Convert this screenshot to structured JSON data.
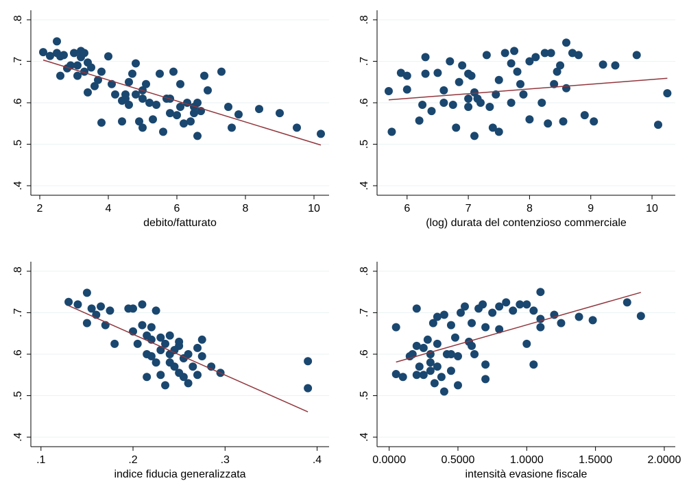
{
  "chart_data": [
    {
      "type": "scatter",
      "xlabel": "debito/fatturato",
      "color": "#1a476f",
      "fit_color": "#90353b",
      "xlim": [
        1.74,
        10.44
      ],
      "ylim": [
        0.377,
        0.823
      ],
      "xticks": [
        2,
        4,
        6,
        8,
        10
      ],
      "yticks": [
        {
          "value": 0.4,
          "label": ".4"
        },
        {
          "value": 0.5,
          "label": ".5"
        },
        {
          "value": 0.6,
          "label": ".6"
        },
        {
          "value": 0.7,
          "label": ".7"
        },
        {
          "value": 0.8,
          "label": ".8"
        }
      ],
      "x": [
        2.1,
        2.3,
        2.5,
        2.5,
        2.6,
        2.6,
        2.7,
        2.8,
        2.9,
        3.0,
        3.1,
        3.1,
        3.2,
        3.2,
        3.3,
        3.3,
        3.4,
        3.4,
        3.5,
        3.6,
        3.7,
        3.8,
        3.8,
        4.0,
        4.1,
        4.2,
        4.4,
        4.4,
        4.5,
        4.6,
        4.6,
        4.7,
        4.8,
        4.8,
        4.9,
        5.0,
        5.0,
        5.1,
        5.2,
        5.3,
        5.4,
        5.5,
        5.6,
        5.7,
        5.8,
        5.9,
        6.0,
        6.1,
        6.1,
        6.2,
        6.3,
        6.4,
        6.5,
        6.6,
        6.6,
        6.7,
        6.8,
        6.9,
        7.3,
        7.5,
        7.6,
        7.8,
        8.4,
        9.0,
        9.5,
        10.2,
        5.0,
        4.5,
        5.8,
        6.5
      ],
      "values": [
        0.722,
        0.713,
        0.748,
        0.72,
        0.665,
        0.712,
        0.715,
        0.683,
        0.69,
        0.72,
        0.69,
        0.665,
        0.725,
        0.71,
        0.675,
        0.72,
        0.697,
        0.625,
        0.685,
        0.64,
        0.655,
        0.675,
        0.552,
        0.712,
        0.645,
        0.62,
        0.605,
        0.555,
        0.61,
        0.595,
        0.65,
        0.67,
        0.695,
        0.62,
        0.555,
        0.61,
        0.54,
        0.645,
        0.6,
        0.56,
        0.595,
        0.67,
        0.53,
        0.61,
        0.575,
        0.675,
        0.57,
        0.645,
        0.59,
        0.55,
        0.6,
        0.555,
        0.575,
        0.52,
        0.6,
        0.58,
        0.665,
        0.63,
        0.675,
        0.59,
        0.54,
        0.572,
        0.585,
        0.575,
        0.54,
        0.525,
        0.63,
        0.62,
        0.61,
        0.59
      ],
      "fit_x": [
        2.1,
        10.2
      ],
      "fit_values": [
        0.703,
        0.498
      ]
    },
    {
      "type": "scatter",
      "xlabel": "(log) durata del contenzioso commerciale",
      "color": "#1a476f",
      "fit_color": "#90353b",
      "xlim": [
        5.51,
        10.38
      ],
      "ylim": [
        0.377,
        0.823
      ],
      "xticks": [
        6,
        7,
        8,
        9,
        10
      ],
      "yticks": [
        {
          "value": 0.4,
          "label": ".4"
        },
        {
          "value": 0.5,
          "label": ".5"
        },
        {
          "value": 0.6,
          "label": ".6"
        },
        {
          "value": 0.7,
          "label": ".7"
        },
        {
          "value": 0.8,
          "label": ".8"
        }
      ],
      "x": [
        5.7,
        5.75,
        5.9,
        6.0,
        6.0,
        6.2,
        6.3,
        6.3,
        6.4,
        6.5,
        6.6,
        6.6,
        6.7,
        6.75,
        6.8,
        6.85,
        6.9,
        7.0,
        7.0,
        7.05,
        7.1,
        7.1,
        7.15,
        7.2,
        7.3,
        7.35,
        7.4,
        7.45,
        7.5,
        7.5,
        7.6,
        7.7,
        7.75,
        7.8,
        7.85,
        7.9,
        8.0,
        8.0,
        8.1,
        8.2,
        8.25,
        8.3,
        8.35,
        8.4,
        8.5,
        8.55,
        8.6,
        8.6,
        8.7,
        8.8,
        8.9,
        9.05,
        9.2,
        9.4,
        9.75,
        10.1,
        10.25,
        6.25,
        7.0,
        7.7,
        8.45
      ],
      "values": [
        0.628,
        0.53,
        0.672,
        0.665,
        0.632,
        0.557,
        0.71,
        0.67,
        0.58,
        0.672,
        0.63,
        0.6,
        0.7,
        0.595,
        0.54,
        0.65,
        0.69,
        0.67,
        0.59,
        0.665,
        0.625,
        0.52,
        0.61,
        0.6,
        0.715,
        0.59,
        0.54,
        0.62,
        0.655,
        0.53,
        0.72,
        0.6,
        0.725,
        0.675,
        0.645,
        0.62,
        0.7,
        0.56,
        0.71,
        0.6,
        0.72,
        0.55,
        0.72,
        0.645,
        0.69,
        0.555,
        0.745,
        0.635,
        0.72,
        0.715,
        0.57,
        0.555,
        0.692,
        0.69,
        0.715,
        0.547,
        0.623,
        0.595,
        0.61,
        0.695,
        0.675
      ],
      "fit_x": [
        5.7,
        10.25
      ],
      "fit_values": [
        0.607,
        0.659
      ]
    },
    {
      "type": "scatter",
      "xlabel": "indice fiducia generalizzata",
      "color": "#1a476f",
      "fit_color": "#90353b",
      "xlim": [
        0.089,
        0.413
      ],
      "ylim": [
        0.377,
        0.823
      ],
      "xticks": [
        {
          "value": 0.1,
          "label": ".1"
        },
        {
          "value": 0.2,
          "label": ".2"
        },
        {
          "value": 0.3,
          "label": ".3"
        },
        {
          "value": 0.4,
          "label": ".4"
        }
      ],
      "yticks": [
        {
          "value": 0.4,
          "label": ".4"
        },
        {
          "value": 0.5,
          "label": ".5"
        },
        {
          "value": 0.6,
          "label": ".6"
        },
        {
          "value": 0.7,
          "label": ".7"
        },
        {
          "value": 0.8,
          "label": ".8"
        }
      ],
      "x": [
        0.13,
        0.14,
        0.15,
        0.15,
        0.155,
        0.16,
        0.165,
        0.17,
        0.175,
        0.18,
        0.195,
        0.2,
        0.2,
        0.205,
        0.21,
        0.21,
        0.215,
        0.215,
        0.22,
        0.22,
        0.225,
        0.225,
        0.23,
        0.23,
        0.235,
        0.235,
        0.24,
        0.24,
        0.245,
        0.245,
        0.25,
        0.25,
        0.255,
        0.255,
        0.26,
        0.26,
        0.265,
        0.27,
        0.27,
        0.275,
        0.275,
        0.285,
        0.295,
        0.39,
        0.39,
        0.215,
        0.23,
        0.22,
        0.25,
        0.24
      ],
      "values": [
        0.726,
        0.72,
        0.748,
        0.675,
        0.71,
        0.695,
        0.715,
        0.67,
        0.705,
        0.625,
        0.71,
        0.71,
        0.655,
        0.625,
        0.67,
        0.72,
        0.6,
        0.545,
        0.665,
        0.595,
        0.58,
        0.705,
        0.64,
        0.55,
        0.625,
        0.525,
        0.6,
        0.645,
        0.57,
        0.61,
        0.555,
        0.63,
        0.59,
        0.545,
        0.6,
        0.53,
        0.57,
        0.615,
        0.55,
        0.635,
        0.595,
        0.57,
        0.555,
        0.583,
        0.518,
        0.645,
        0.61,
        0.635,
        0.62,
        0.58
      ],
      "fit_x": [
        0.13,
        0.39
      ],
      "fit_values": [
        0.717,
        0.461
      ]
    },
    {
      "type": "scatter",
      "xlabel": "intensità evasione fiscale",
      "color": "#1a476f",
      "fit_color": "#90353b",
      "xlim": [
        -0.088,
        2.08
      ],
      "ylim": [
        0.377,
        0.823
      ],
      "xticks": [
        {
          "value": 0,
          "label": "0.0000"
        },
        {
          "value": 0.5,
          "label": "0.5000"
        },
        {
          "value": 1,
          "label": "1.0000"
        },
        {
          "value": 1.5,
          "label": "1.5000"
        },
        {
          "value": 2,
          "label": "2.0000"
        }
      ],
      "yticks": [
        {
          "value": 0.4,
          "label": ".4"
        },
        {
          "value": 0.5,
          "label": ".5"
        },
        {
          "value": 0.6,
          "label": ".6"
        },
        {
          "value": 0.7,
          "label": ".7"
        },
        {
          "value": 0.8,
          "label": ".8"
        }
      ],
      "x": [
        0.05,
        0.05,
        0.1,
        0.15,
        0.17,
        0.2,
        0.2,
        0.22,
        0.25,
        0.25,
        0.28,
        0.3,
        0.3,
        0.32,
        0.33,
        0.35,
        0.35,
        0.38,
        0.4,
        0.4,
        0.42,
        0.45,
        0.45,
        0.48,
        0.5,
        0.5,
        0.52,
        0.55,
        0.58,
        0.6,
        0.62,
        0.65,
        0.68,
        0.7,
        0.7,
        0.7,
        0.75,
        0.8,
        0.8,
        0.85,
        0.9,
        0.95,
        1.0,
        1.0,
        1.05,
        1.05,
        1.1,
        1.1,
        1.1,
        1.2,
        1.25,
        1.38,
        1.48,
        1.73,
        1.83,
        0.3,
        0.45,
        0.35,
        0.2,
        0.6
      ],
      "values": [
        0.552,
        0.665,
        0.545,
        0.595,
        0.6,
        0.71,
        0.62,
        0.57,
        0.55,
        0.615,
        0.635,
        0.56,
        0.6,
        0.675,
        0.53,
        0.69,
        0.625,
        0.545,
        0.695,
        0.51,
        0.6,
        0.67,
        0.56,
        0.64,
        0.525,
        0.595,
        0.7,
        0.715,
        0.63,
        0.675,
        0.6,
        0.71,
        0.72,
        0.665,
        0.575,
        0.54,
        0.7,
        0.66,
        0.715,
        0.725,
        0.705,
        0.72,
        0.72,
        0.625,
        0.575,
        0.705,
        0.75,
        0.685,
        0.665,
        0.695,
        0.675,
        0.69,
        0.682,
        0.725,
        0.692,
        0.58,
        0.6,
        0.57,
        0.55,
        0.62
      ],
      "fit_x": [
        0.05,
        1.83
      ],
      "fit_values": [
        0.581,
        0.749
      ]
    }
  ]
}
